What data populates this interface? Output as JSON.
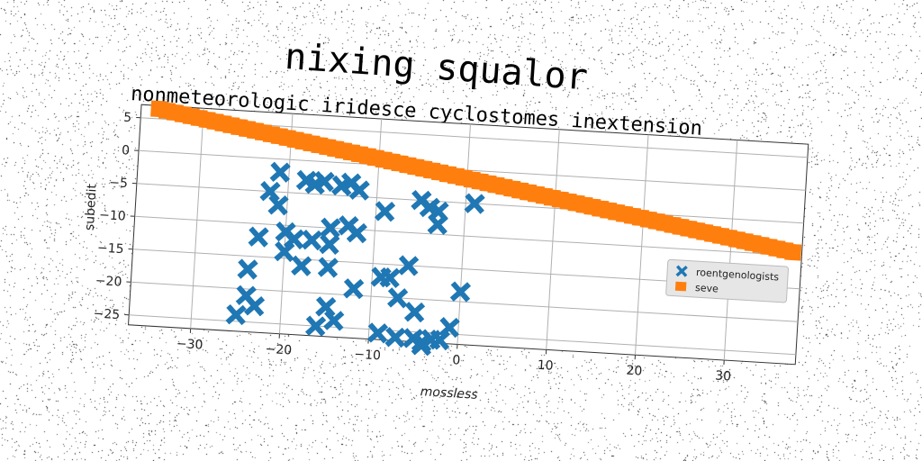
{
  "chart_data": {
    "type": "scatter",
    "title": "nixing squalor",
    "subtitle": "nonmeteorologic iridesce cyclostomes inextension",
    "xlabel": "mossless",
    "ylabel": "subedit",
    "xlim": [
      -37,
      38
    ],
    "ylim": [
      -26.5,
      7
    ],
    "xticks": [
      -30,
      -20,
      -10,
      0,
      10,
      20,
      30
    ],
    "yticks": [
      5,
      0,
      -5,
      -10,
      -15,
      -20,
      -25
    ],
    "grid": true,
    "legend_position": "right",
    "series": [
      {
        "name": "roentgenologists",
        "marker": "X",
        "color": "#1f77b4",
        "points": [
          [
            -21,
            -2
          ],
          [
            -22,
            -5
          ],
          [
            -21,
            -7
          ],
          [
            -18,
            -3
          ],
          [
            -17,
            -3.5
          ],
          [
            -16,
            -3
          ],
          [
            -14,
            -3.5
          ],
          [
            -13,
            -3
          ],
          [
            -12,
            -4
          ],
          [
            -20,
            -11
          ],
          [
            -19,
            -12
          ],
          [
            -20,
            -14
          ],
          [
            -17,
            -12
          ],
          [
            -18,
            -16
          ],
          [
            -23,
            -12
          ],
          [
            -15,
            -10
          ],
          [
            -13,
            -9.5
          ],
          [
            -12,
            -10.5
          ],
          [
            -15,
            -12.5
          ],
          [
            -15,
            -16
          ],
          [
            -12,
            -19
          ],
          [
            -24,
            -17
          ],
          [
            -24,
            -21
          ],
          [
            -23,
            -22.5
          ],
          [
            -25,
            -24
          ],
          [
            -16,
            -25
          ],
          [
            -14,
            -24
          ],
          [
            -15,
            -22
          ],
          [
            -9,
            -7
          ],
          [
            -9,
            -17
          ],
          [
            -8,
            -17
          ],
          [
            -7,
            -20
          ],
          [
            -9,
            -25.5
          ],
          [
            -7,
            -26
          ],
          [
            -5,
            -5
          ],
          [
            -4,
            -6
          ],
          [
            -3,
            -6.5
          ],
          [
            -3,
            -8.5
          ],
          [
            -6,
            -15
          ],
          [
            -5,
            -22
          ],
          [
            -5,
            -26
          ],
          [
            -4,
            -26.5
          ],
          [
            -3,
            -26
          ],
          [
            -4,
            -27
          ],
          [
            -2,
            -26
          ],
          [
            -1,
            -24
          ],
          [
            0,
            -18.5
          ],
          [
            1,
            -5
          ]
        ]
      },
      {
        "name": "seve",
        "marker": "s",
        "color": "#ff7f0e",
        "line": {
          "x_start": -35,
          "x_end": 37,
          "y_start": 6.5,
          "y_end": -9.5,
          "count": 80
        }
      }
    ]
  }
}
